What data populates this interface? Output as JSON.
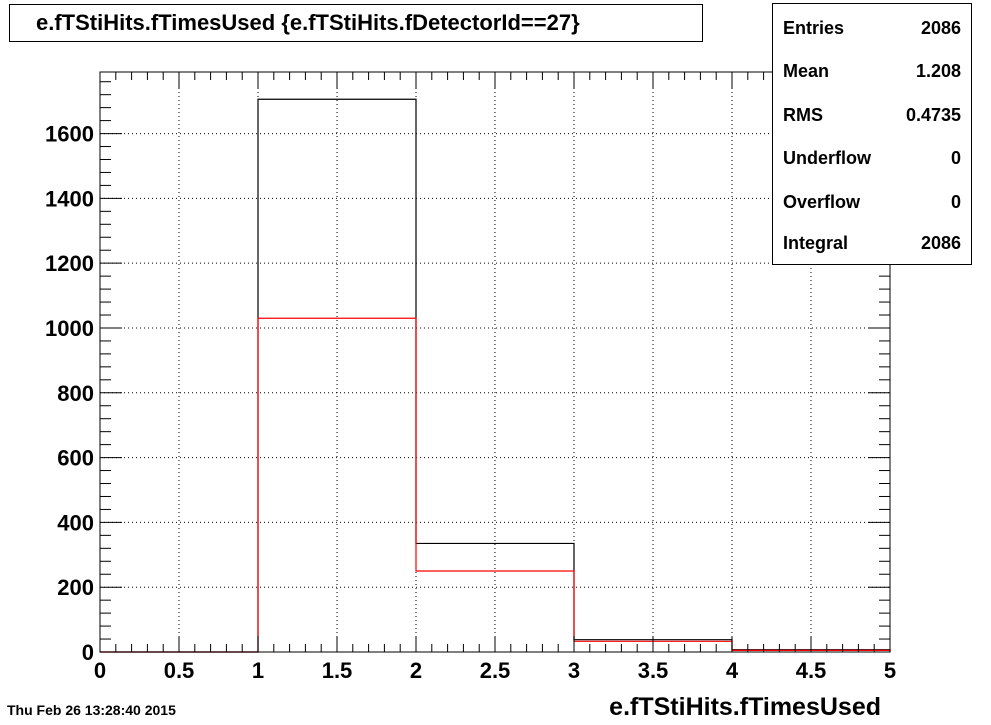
{
  "title": "e.fTStiHits.fTimesUsed {e.fTStiHits.fDetectorId==27}",
  "date": "Thu Feb 26 13:28:40 2015",
  "stats": [
    {
      "label": "Entries",
      "value": "2086"
    },
    {
      "label": "Mean",
      "value": "1.208"
    },
    {
      "label": "RMS",
      "value": "0.4735"
    },
    {
      "label": "Underflow",
      "value": "0"
    },
    {
      "label": "Overflow",
      "value": "0"
    },
    {
      "label": "Integral",
      "value": "2086"
    }
  ],
  "chart_data": {
    "type": "bar",
    "title": "e.fTStiHits.fTimesUsed {e.fTStiHits.fDetectorId==27}",
    "xlabel": "e.fTStiHits.fTimesUsed",
    "ylabel": "",
    "xlim": [
      0,
      5
    ],
    "ylim": [
      0,
      1790
    ],
    "grid": true,
    "bin_edges": [
      0,
      1,
      2,
      3,
      4,
      5
    ],
    "series": [
      {
        "color": "#000000",
        "values": [
          0,
          1706,
          335,
          38,
          7
        ]
      },
      {
        "color": "#ff0000",
        "values": [
          0,
          1030,
          250,
          33,
          5
        ]
      }
    ],
    "xticks": [
      "0",
      "0.5",
      "1",
      "1.5",
      "2",
      "2.5",
      "3",
      "3.5",
      "4",
      "4.5",
      "5"
    ],
    "yticks": [
      "0",
      "200",
      "400",
      "600",
      "800",
      "1000",
      "1200",
      "1400",
      "1600"
    ]
  }
}
